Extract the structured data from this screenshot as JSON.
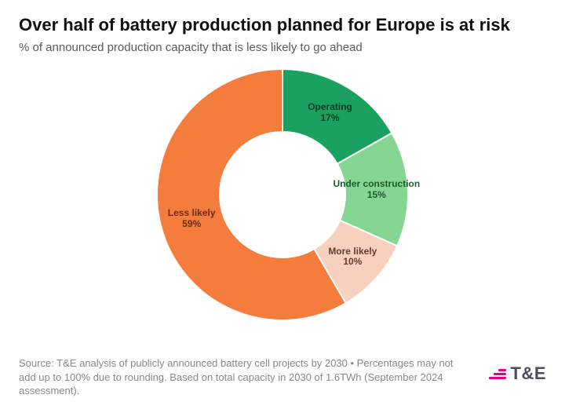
{
  "title": "Over half of battery production planned for Europe is at risk",
  "subtitle": "% of announced production capacity that is less likely to go ahead",
  "chart": {
    "type": "donut",
    "outer_radius": 160,
    "inner_radius": 80,
    "start_angle_deg": -90,
    "background_color": "#ffffff",
    "slices": [
      {
        "label": "Operating",
        "sublabel": "17%",
        "value": 17,
        "color": "#1aa160",
        "text_color": "#083b23"
      },
      {
        "label": "Under construction",
        "sublabel": "15%",
        "value": 15,
        "color": "#85d693",
        "text_color": "#1e5a2e"
      },
      {
        "label": "More likely",
        "sublabel": "10%",
        "value": 10,
        "color": "#f8d1be",
        "text_color": "#6b3a24"
      },
      {
        "label": "Less likely",
        "sublabel": "59%",
        "value": 59,
        "color": "#f47c3c",
        "text_color": "#6b2f0f"
      }
    ],
    "label_fontsize": 12,
    "label_fontweight": 700
  },
  "source": "Source: T&E analysis of publicly announced battery cell projects by 2030 • Percentages may not add up to 100% due to rounding. Based on total capacity in 2030 of 1.6TWh (September 2024 assessment).",
  "logo": {
    "text": "T&E",
    "text_color": "#4a4e5a",
    "accent_color": "#e6007e"
  }
}
